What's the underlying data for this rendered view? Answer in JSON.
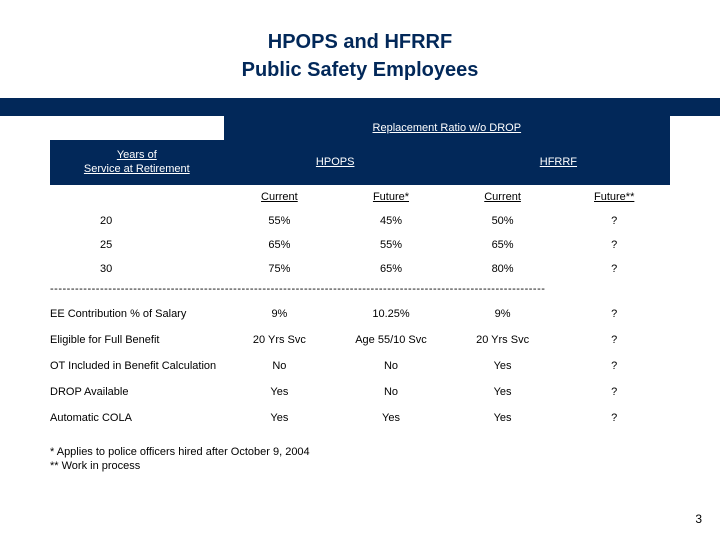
{
  "title": {
    "line1": "HPOPS and HFRRF",
    "line2": "Public Safety Employees"
  },
  "colors": {
    "brand": "#022859",
    "background": "#ffffff",
    "text": "#000000"
  },
  "table": {
    "banner": "Replacement Ratio w/o DROP",
    "header": {
      "left_l1": "Years of",
      "left_l2": "Service at Retirement",
      "col_group1": "HPOPS",
      "col_group2": "HFRRF"
    },
    "subheaders": {
      "c1": "Current",
      "c2": "Future*",
      "c3": "Current",
      "c4": "Future**"
    },
    "ratio_rows": [
      {
        "yrs": "20",
        "v": [
          "55%",
          "45%",
          "50%",
          "?"
        ]
      },
      {
        "yrs": "25",
        "v": [
          "65%",
          "55%",
          "65%",
          "?"
        ]
      },
      {
        "yrs": "30",
        "v": [
          "75%",
          "65%",
          "80%",
          "?"
        ]
      }
    ],
    "divider": "-----------------------------------------------------------------------------------------------------------------------",
    "feature_rows": [
      {
        "label": "EE Contribution % of Salary",
        "v": [
          "9%",
          "10.25%",
          "9%",
          "?"
        ]
      },
      {
        "label": "Eligible for Full Benefit",
        "v": [
          "20 Yrs Svc",
          "Age 55/10 Svc",
          "20 Yrs Svc",
          "?"
        ]
      },
      {
        "label": "OT Included in Benefit Calculation",
        "v": [
          "No",
          "No",
          "Yes",
          "?"
        ]
      },
      {
        "label": "DROP Available",
        "v": [
          "Yes",
          "No",
          "Yes",
          "?"
        ]
      },
      {
        "label": "Automatic COLA",
        "v": [
          "Yes",
          "Yes",
          "Yes",
          "?"
        ]
      }
    ]
  },
  "footnotes": {
    "f1": "*  Applies to police officers hired after October 9, 2004",
    "f2": "** Work in process"
  },
  "page_number": "3"
}
